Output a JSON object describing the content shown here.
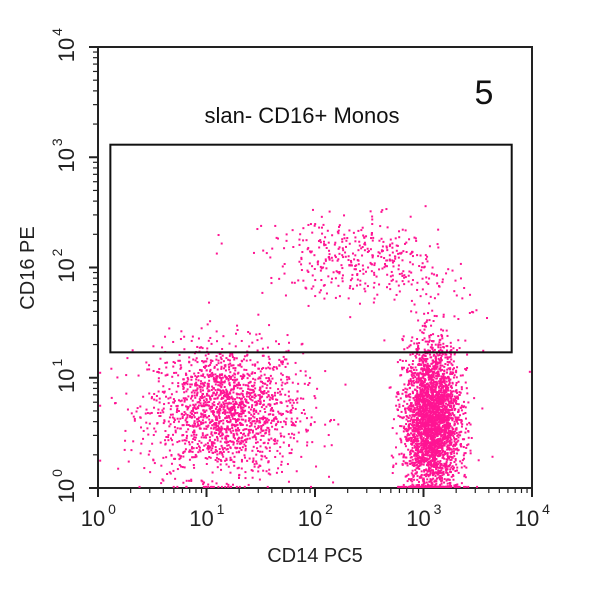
{
  "chart_data": {
    "type": "scatter",
    "title": "",
    "panel_number": "5",
    "xlabel": "CD14 PC5",
    "ylabel": "CD16 PE",
    "x_scale": "log",
    "y_scale": "log",
    "xlim": [
      1,
      10000
    ],
    "ylim": [
      1,
      10000
    ],
    "x_ticks": [
      {
        "base": "10",
        "exp": "0",
        "value": 1
      },
      {
        "base": "10",
        "exp": "1",
        "value": 10
      },
      {
        "base": "10",
        "exp": "2",
        "value": 100
      },
      {
        "base": "10",
        "exp": "3",
        "value": 1000
      },
      {
        "base": "10",
        "exp": "4",
        "value": 10000
      }
    ],
    "y_ticks": [
      {
        "base": "10",
        "exp": "0",
        "value": 1
      },
      {
        "base": "10",
        "exp": "1",
        "value": 10
      },
      {
        "base": "10",
        "exp": "2",
        "value": 100
      },
      {
        "base": "10",
        "exp": "3",
        "value": 1000
      },
      {
        "base": "10",
        "exp": "4",
        "value": 10000
      }
    ],
    "gate": {
      "label": "slan- CD16+ Monos",
      "x_range": [
        1.3,
        6500
      ],
      "y_range": [
        17,
        1300
      ]
    },
    "clusters": [
      {
        "description": "CD14- CD16-",
        "center": [
          15,
          5
        ],
        "spread_log": [
          0.35,
          0.3
        ],
        "count": 1800
      },
      {
        "description": "CD14+ CD16-",
        "center": [
          1200,
          4
        ],
        "spread_log": [
          0.13,
          0.35
        ],
        "count": 3000
      },
      {
        "description": "slan- CD16+ monocytes",
        "center": [
          300,
          120
        ],
        "spread_log": [
          0.45,
          0.18
        ],
        "count": 420
      }
    ],
    "grid": false,
    "legend": "none",
    "dot_color": "#ff1493",
    "axis_color": "#222222"
  }
}
